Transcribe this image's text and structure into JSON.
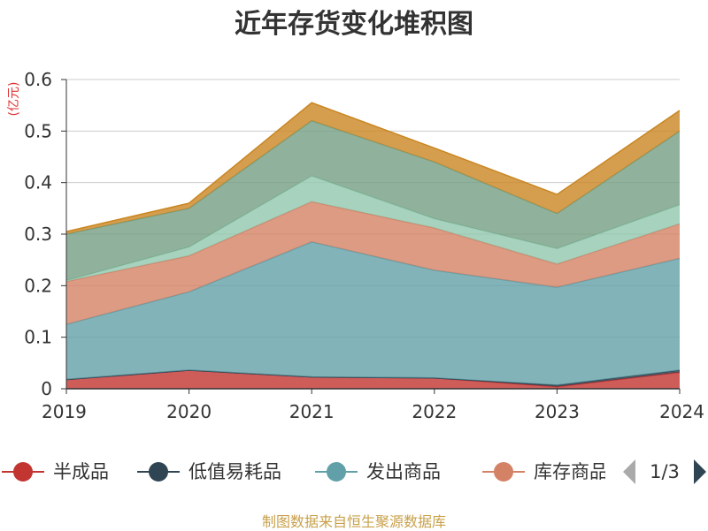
{
  "chart_data": {
    "type": "area",
    "title": "近年存货变化堆积图",
    "ylabel": "(亿元)",
    "x": [
      "2019",
      "2020",
      "2021",
      "2022",
      "2023",
      "2024"
    ],
    "ylim": [
      0,
      0.6
    ],
    "yticks": [
      "0",
      "0.1",
      "0.2",
      "0.3",
      "0.4",
      "0.5",
      "0.6"
    ],
    "stacked": true,
    "grid": true,
    "legend_position": "bottom",
    "series": [
      {
        "name": "半成品",
        "color": "#c23531",
        "values": [
          0.018,
          0.036,
          0.023,
          0.021,
          0.004,
          0.032
        ]
      },
      {
        "name": "低值易耗品",
        "color": "#2f4554",
        "values": [
          0.0,
          0.0,
          0.0,
          0.0,
          0.003,
          0.004
        ]
      },
      {
        "name": "发出商品",
        "color": "#61a0a8",
        "values": [
          0.107,
          0.152,
          0.262,
          0.209,
          0.19,
          0.217
        ]
      },
      {
        "name": "库存商品",
        "color": "#d48265",
        "values": [
          0.083,
          0.07,
          0.078,
          0.082,
          0.045,
          0.067
        ]
      },
      {
        "name": "",
        "color": "#91c7ae",
        "values": [
          0.002,
          0.017,
          0.05,
          0.018,
          0.03,
          0.037
        ]
      },
      {
        "name": "",
        "color": "#749f83",
        "values": [
          0.09,
          0.075,
          0.107,
          0.11,
          0.068,
          0.143
        ]
      },
      {
        "name": "",
        "color": "#ca8622",
        "values": [
          0.005,
          0.01,
          0.035,
          0.027,
          0.037,
          0.04
        ]
      }
    ],
    "legend_visible": [
      "半成品",
      "低值易耗品",
      "发出商品",
      "库存商品"
    ],
    "legend_page": "1/3"
  },
  "footer": {
    "source": "制图数据来自恒生聚源数据库"
  }
}
